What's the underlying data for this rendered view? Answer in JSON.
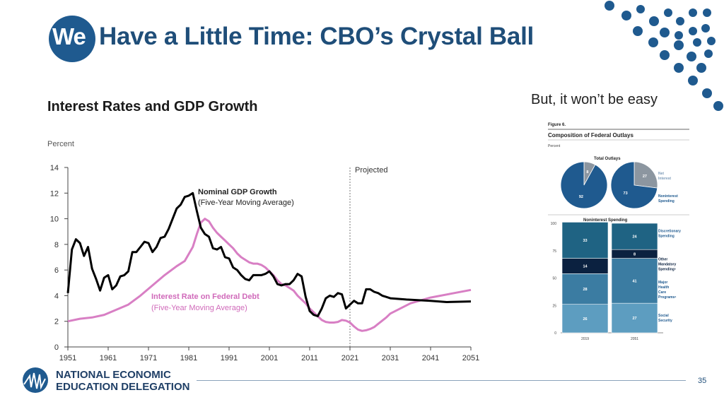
{
  "slide": {
    "title_logo": "We",
    "title": "Have a Little Time: CBO’s Crystal Ball",
    "subtitle": "But, it won’t be easy",
    "page_number": "35",
    "org_line1": "NATIONAL ECONOMIC",
    "org_line2": "EDUCATION DELEGATION"
  },
  "colors": {
    "title": "#1f4e79",
    "gdp_line": "#000000",
    "interest_line": "#d87fc4",
    "dark_blue": "#1f5a8f"
  },
  "chart_data": [
    {
      "type": "line",
      "title": "Interest Rates and GDP Growth",
      "ylabel": "Percent",
      "ylim": [
        0,
        14
      ],
      "yticks": [
        0,
        2,
        4,
        6,
        8,
        10,
        12,
        14
      ],
      "xlim": [
        1951,
        2051
      ],
      "xticks": [
        1951,
        1961,
        1971,
        1981,
        1991,
        2001,
        2011,
        2021,
        2031,
        2041,
        2051
      ],
      "projected_label": "Projected",
      "projected_start": 2021,
      "series": [
        {
          "name": "Nominal GDP Growth",
          "name2": "(Five-Year Moving Average)",
          "x": [
            1951,
            1952,
            1953,
            1954,
            1955,
            1956,
            1957,
            1958,
            1959,
            1960,
            1961,
            1962,
            1963,
            1964,
            1965,
            1966,
            1967,
            1968,
            1969,
            1970,
            1971,
            1972,
            1973,
            1974,
            1975,
            1976,
            1977,
            1978,
            1979,
            1980,
            1981,
            1982,
            1983,
            1984,
            1985,
            1986,
            1987,
            1988,
            1989,
            1990,
            1991,
            1992,
            1993,
            1994,
            1995,
            1996,
            1997,
            1998,
            1999,
            2000,
            2001,
            2002,
            2003,
            2004,
            2005,
            2006,
            2007,
            2008,
            2009,
            2010,
            2011,
            2012,
            2013,
            2014,
            2015,
            2016,
            2017,
            2018,
            2019,
            2020,
            2021,
            2022,
            2023,
            2024,
            2025,
            2026,
            2027,
            2028,
            2029,
            2030,
            2031,
            2035,
            2041,
            2045,
            2051
          ],
          "values": [
            4.2,
            7.6,
            8.4,
            8.1,
            7.1,
            7.8,
            6.1,
            5.3,
            4.4,
            5.4,
            5.6,
            4.5,
            4.8,
            5.5,
            5.6,
            5.9,
            7.4,
            7.4,
            7.8,
            8.2,
            8.1,
            7.4,
            7.8,
            8.5,
            8.6,
            9.2,
            10.0,
            10.8,
            11.1,
            11.7,
            11.8,
            12.0,
            10.6,
            9.3,
            8.8,
            8.6,
            7.7,
            7.6,
            7.8,
            7.0,
            6.9,
            6.2,
            6.0,
            5.6,
            5.3,
            5.2,
            5.6,
            5.6,
            5.6,
            5.7,
            5.9,
            5.5,
            4.9,
            4.8,
            4.9,
            4.9,
            5.2,
            5.7,
            5.5,
            3.9,
            2.8,
            2.5,
            2.4,
            3.0,
            3.8,
            4.0,
            3.9,
            4.2,
            4.1,
            3.0,
            3.3,
            3.6,
            3.4,
            3.4,
            4.5,
            4.5,
            4.3,
            4.2,
            4.0,
            3.9,
            3.8,
            3.7,
            3.6,
            3.5,
            3.55
          ]
        },
        {
          "name": "Interest Rate on Federal Debt",
          "name2": "(Five-Year Moving Average)",
          "x": [
            1951,
            1954,
            1957,
            1960,
            1963,
            1966,
            1969,
            1972,
            1975,
            1978,
            1980,
            1982,
            1983,
            1984,
            1985,
            1986,
            1987,
            1988,
            1989,
            1990,
            1991,
            1992,
            1993,
            1994,
            1995,
            1996,
            1997,
            1998,
            1999,
            2000,
            2001,
            2002,
            2003,
            2004,
            2005,
            2006,
            2007,
            2008,
            2009,
            2010,
            2011,
            2012,
            2013,
            2014,
            2015,
            2016,
            2017,
            2018,
            2019,
            2020,
            2021,
            2022,
            2023,
            2024,
            2025,
            2026,
            2027,
            2028,
            2029,
            2030,
            2031,
            2036,
            2041,
            2046,
            2051
          ],
          "values": [
            2.0,
            2.2,
            2.3,
            2.5,
            2.9,
            3.3,
            4.0,
            4.8,
            5.6,
            6.3,
            6.7,
            7.8,
            8.8,
            9.7,
            10.0,
            9.8,
            9.3,
            8.9,
            8.6,
            8.3,
            8.0,
            7.7,
            7.3,
            7.0,
            6.8,
            6.6,
            6.5,
            6.5,
            6.4,
            6.2,
            5.9,
            5.6,
            5.2,
            4.9,
            4.8,
            4.6,
            4.4,
            4.0,
            3.7,
            3.4,
            3.0,
            2.7,
            2.4,
            2.1,
            1.95,
            1.9,
            1.9,
            1.95,
            2.1,
            2.05,
            1.9,
            1.6,
            1.35,
            1.25,
            1.3,
            1.4,
            1.55,
            1.8,
            2.05,
            2.3,
            2.6,
            3.4,
            3.85,
            4.15,
            4.45
          ]
        }
      ]
    },
    {
      "type": "pie",
      "title": "Total Outlays",
      "figure_label": "Figure 6.",
      "figure_title": "Composition of Federal Outlays",
      "unit": "Percent",
      "pies": [
        {
          "year": "2019",
          "slices": [
            {
              "label": "Net Interest",
              "value": 8
            },
            {
              "label": "Noninterest Spending",
              "value": 92
            }
          ]
        },
        {
          "year": "2051",
          "slices": [
            {
              "label": "Net Interest",
              "value": 27
            },
            {
              "label": "Noninterest Spending",
              "value": 73
            }
          ]
        }
      ],
      "legend": [
        "Net",
        "Interest",
        "Noninterest",
        "Spending"
      ]
    },
    {
      "type": "bar",
      "stacked": true,
      "title": "Noninterest Spending",
      "categories": [
        "2019",
        "2051"
      ],
      "ylim": [
        0,
        100
      ],
      "yticks": [
        0,
        25,
        50,
        75,
        100
      ],
      "series": [
        {
          "name": "Social Security",
          "legend": [
            "Social",
            "Security"
          ],
          "values": [
            26,
            27
          ],
          "color": "#5d9dc0"
        },
        {
          "name": "Major Health Care Programs",
          "legend": [
            "Major",
            "Health",
            "Care",
            "Programsᵃ"
          ],
          "values": [
            28,
            41
          ],
          "color": "#3b7ca2"
        },
        {
          "name": "Other Mandatory Spending",
          "legend": [
            "Other",
            "Mandatory",
            "Spendingᵃ"
          ],
          "values": [
            14,
            8
          ],
          "color": "#0b2140"
        },
        {
          "name": "Discretionary Spending",
          "legend": [
            "Discretionary",
            "Spending"
          ],
          "values": [
            33,
            24
          ],
          "color": "#1f6383"
        }
      ]
    }
  ]
}
